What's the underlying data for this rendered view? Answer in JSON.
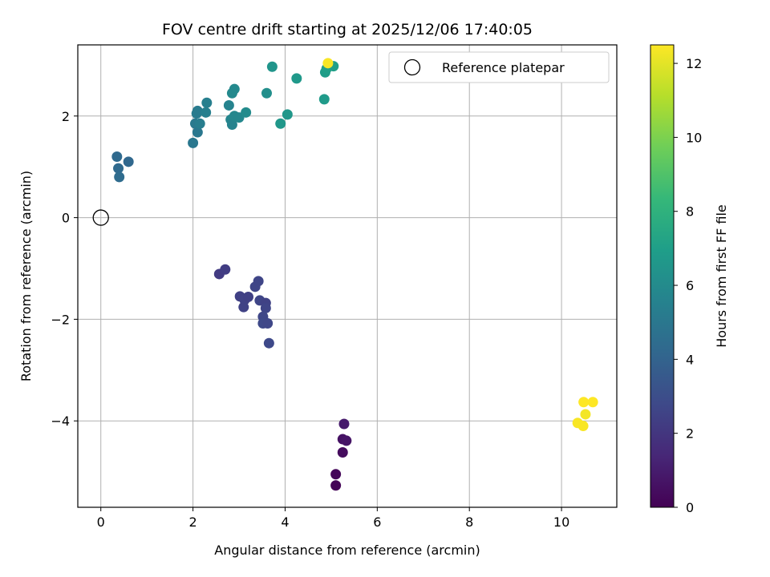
{
  "chart_data": {
    "type": "scatter",
    "title": "FOV centre drift starting at 2025/12/06 17:40:05",
    "xlabel": "Angular distance from reference (arcmin)",
    "ylabel": "Rotation from reference (arcmin)",
    "xlim": [
      -0.5,
      11.2
    ],
    "ylim": [
      -5.7,
      3.4
    ],
    "xticks": [
      0,
      2,
      4,
      6,
      8,
      10
    ],
    "yticks": [
      -4,
      -2,
      0,
      2
    ],
    "grid": true,
    "legend": {
      "location": "top-right",
      "entries": [
        "Reference platepar"
      ]
    },
    "reference_point": {
      "x": 0,
      "y": 0,
      "label": "Reference platepar"
    },
    "colorbar": {
      "label": "Hours from first FF file",
      "colormap": "viridis",
      "range": [
        0,
        12.5
      ],
      "ticks": [
        0,
        2,
        4,
        6,
        8,
        10,
        12
      ]
    },
    "points": [
      {
        "x": 5.1,
        "y": -5.27,
        "t": 0.1
      },
      {
        "x": 5.1,
        "y": -5.05,
        "t": 0.2
      },
      {
        "x": 5.25,
        "y": -4.62,
        "t": 0.4
      },
      {
        "x": 5.25,
        "y": -4.36,
        "t": 0.6
      },
      {
        "x": 5.33,
        "y": -4.39,
        "t": 0.7
      },
      {
        "x": 5.28,
        "y": -4.06,
        "t": 0.9
      },
      {
        "x": 2.57,
        "y": -1.11,
        "t": 2.2
      },
      {
        "x": 2.7,
        "y": -1.02,
        "t": 2.3
      },
      {
        "x": 3.02,
        "y": -1.55,
        "t": 2.4
      },
      {
        "x": 3.12,
        "y": -1.62,
        "t": 2.5
      },
      {
        "x": 3.2,
        "y": -1.56,
        "t": 2.4
      },
      {
        "x": 3.1,
        "y": -1.76,
        "t": 2.5
      },
      {
        "x": 3.35,
        "y": -1.36,
        "t": 2.6
      },
      {
        "x": 3.42,
        "y": -1.25,
        "t": 2.6
      },
      {
        "x": 3.45,
        "y": -1.63,
        "t": 2.6
      },
      {
        "x": 3.58,
        "y": -1.68,
        "t": 2.5
      },
      {
        "x": 3.58,
        "y": -1.78,
        "t": 2.6
      },
      {
        "x": 3.52,
        "y": -1.95,
        "t": 2.7
      },
      {
        "x": 3.52,
        "y": -2.08,
        "t": 2.8
      },
      {
        "x": 3.62,
        "y": -2.08,
        "t": 2.7
      },
      {
        "x": 3.65,
        "y": -2.47,
        "t": 2.8
      },
      {
        "x": 0.35,
        "y": 1.2,
        "t": 4.3
      },
      {
        "x": 0.6,
        "y": 1.1,
        "t": 4.2
      },
      {
        "x": 0.38,
        "y": 0.97,
        "t": 4.3
      },
      {
        "x": 0.4,
        "y": 0.8,
        "t": 4.4
      },
      {
        "x": 2.0,
        "y": 1.47,
        "t": 5.0
      },
      {
        "x": 2.05,
        "y": 1.85,
        "t": 5.1
      },
      {
        "x": 2.08,
        "y": 2.05,
        "t": 5.2
      },
      {
        "x": 2.1,
        "y": 1.68,
        "t": 5.0
      },
      {
        "x": 2.15,
        "y": 1.85,
        "t": 5.3
      },
      {
        "x": 2.1,
        "y": 2.1,
        "t": 5.2
      },
      {
        "x": 2.28,
        "y": 2.07,
        "t": 5.4
      },
      {
        "x": 2.3,
        "y": 2.26,
        "t": 5.4
      },
      {
        "x": 2.78,
        "y": 2.21,
        "t": 5.6
      },
      {
        "x": 2.82,
        "y": 1.93,
        "t": 5.7
      },
      {
        "x": 2.85,
        "y": 1.83,
        "t": 5.6
      },
      {
        "x": 2.9,
        "y": 2.0,
        "t": 5.8
      },
      {
        "x": 3.0,
        "y": 1.97,
        "t": 5.8
      },
      {
        "x": 2.85,
        "y": 2.45,
        "t": 5.9
      },
      {
        "x": 2.9,
        "y": 2.53,
        "t": 5.9
      },
      {
        "x": 3.15,
        "y": 2.07,
        "t": 6.0
      },
      {
        "x": 3.6,
        "y": 2.45,
        "t": 6.2
      },
      {
        "x": 3.72,
        "y": 2.97,
        "t": 6.5
      },
      {
        "x": 3.9,
        "y": 1.85,
        "t": 6.6
      },
      {
        "x": 4.05,
        "y": 2.03,
        "t": 6.6
      },
      {
        "x": 4.25,
        "y": 2.74,
        "t": 6.7
      },
      {
        "x": 4.85,
        "y": 2.33,
        "t": 6.8
      },
      {
        "x": 4.87,
        "y": 2.86,
        "t": 6.9
      },
      {
        "x": 4.9,
        "y": 2.93,
        "t": 7.0
      },
      {
        "x": 5.05,
        "y": 2.98,
        "t": 7.0
      },
      {
        "x": 4.93,
        "y": 3.04,
        "t": 12.4
      },
      {
        "x": 10.35,
        "y": -4.04,
        "t": 12.4
      },
      {
        "x": 10.47,
        "y": -4.1,
        "t": 12.4
      },
      {
        "x": 10.52,
        "y": -3.87,
        "t": 12.3
      },
      {
        "x": 10.48,
        "y": -3.63,
        "t": 12.5
      },
      {
        "x": 10.68,
        "y": -3.63,
        "t": 12.5
      }
    ]
  }
}
